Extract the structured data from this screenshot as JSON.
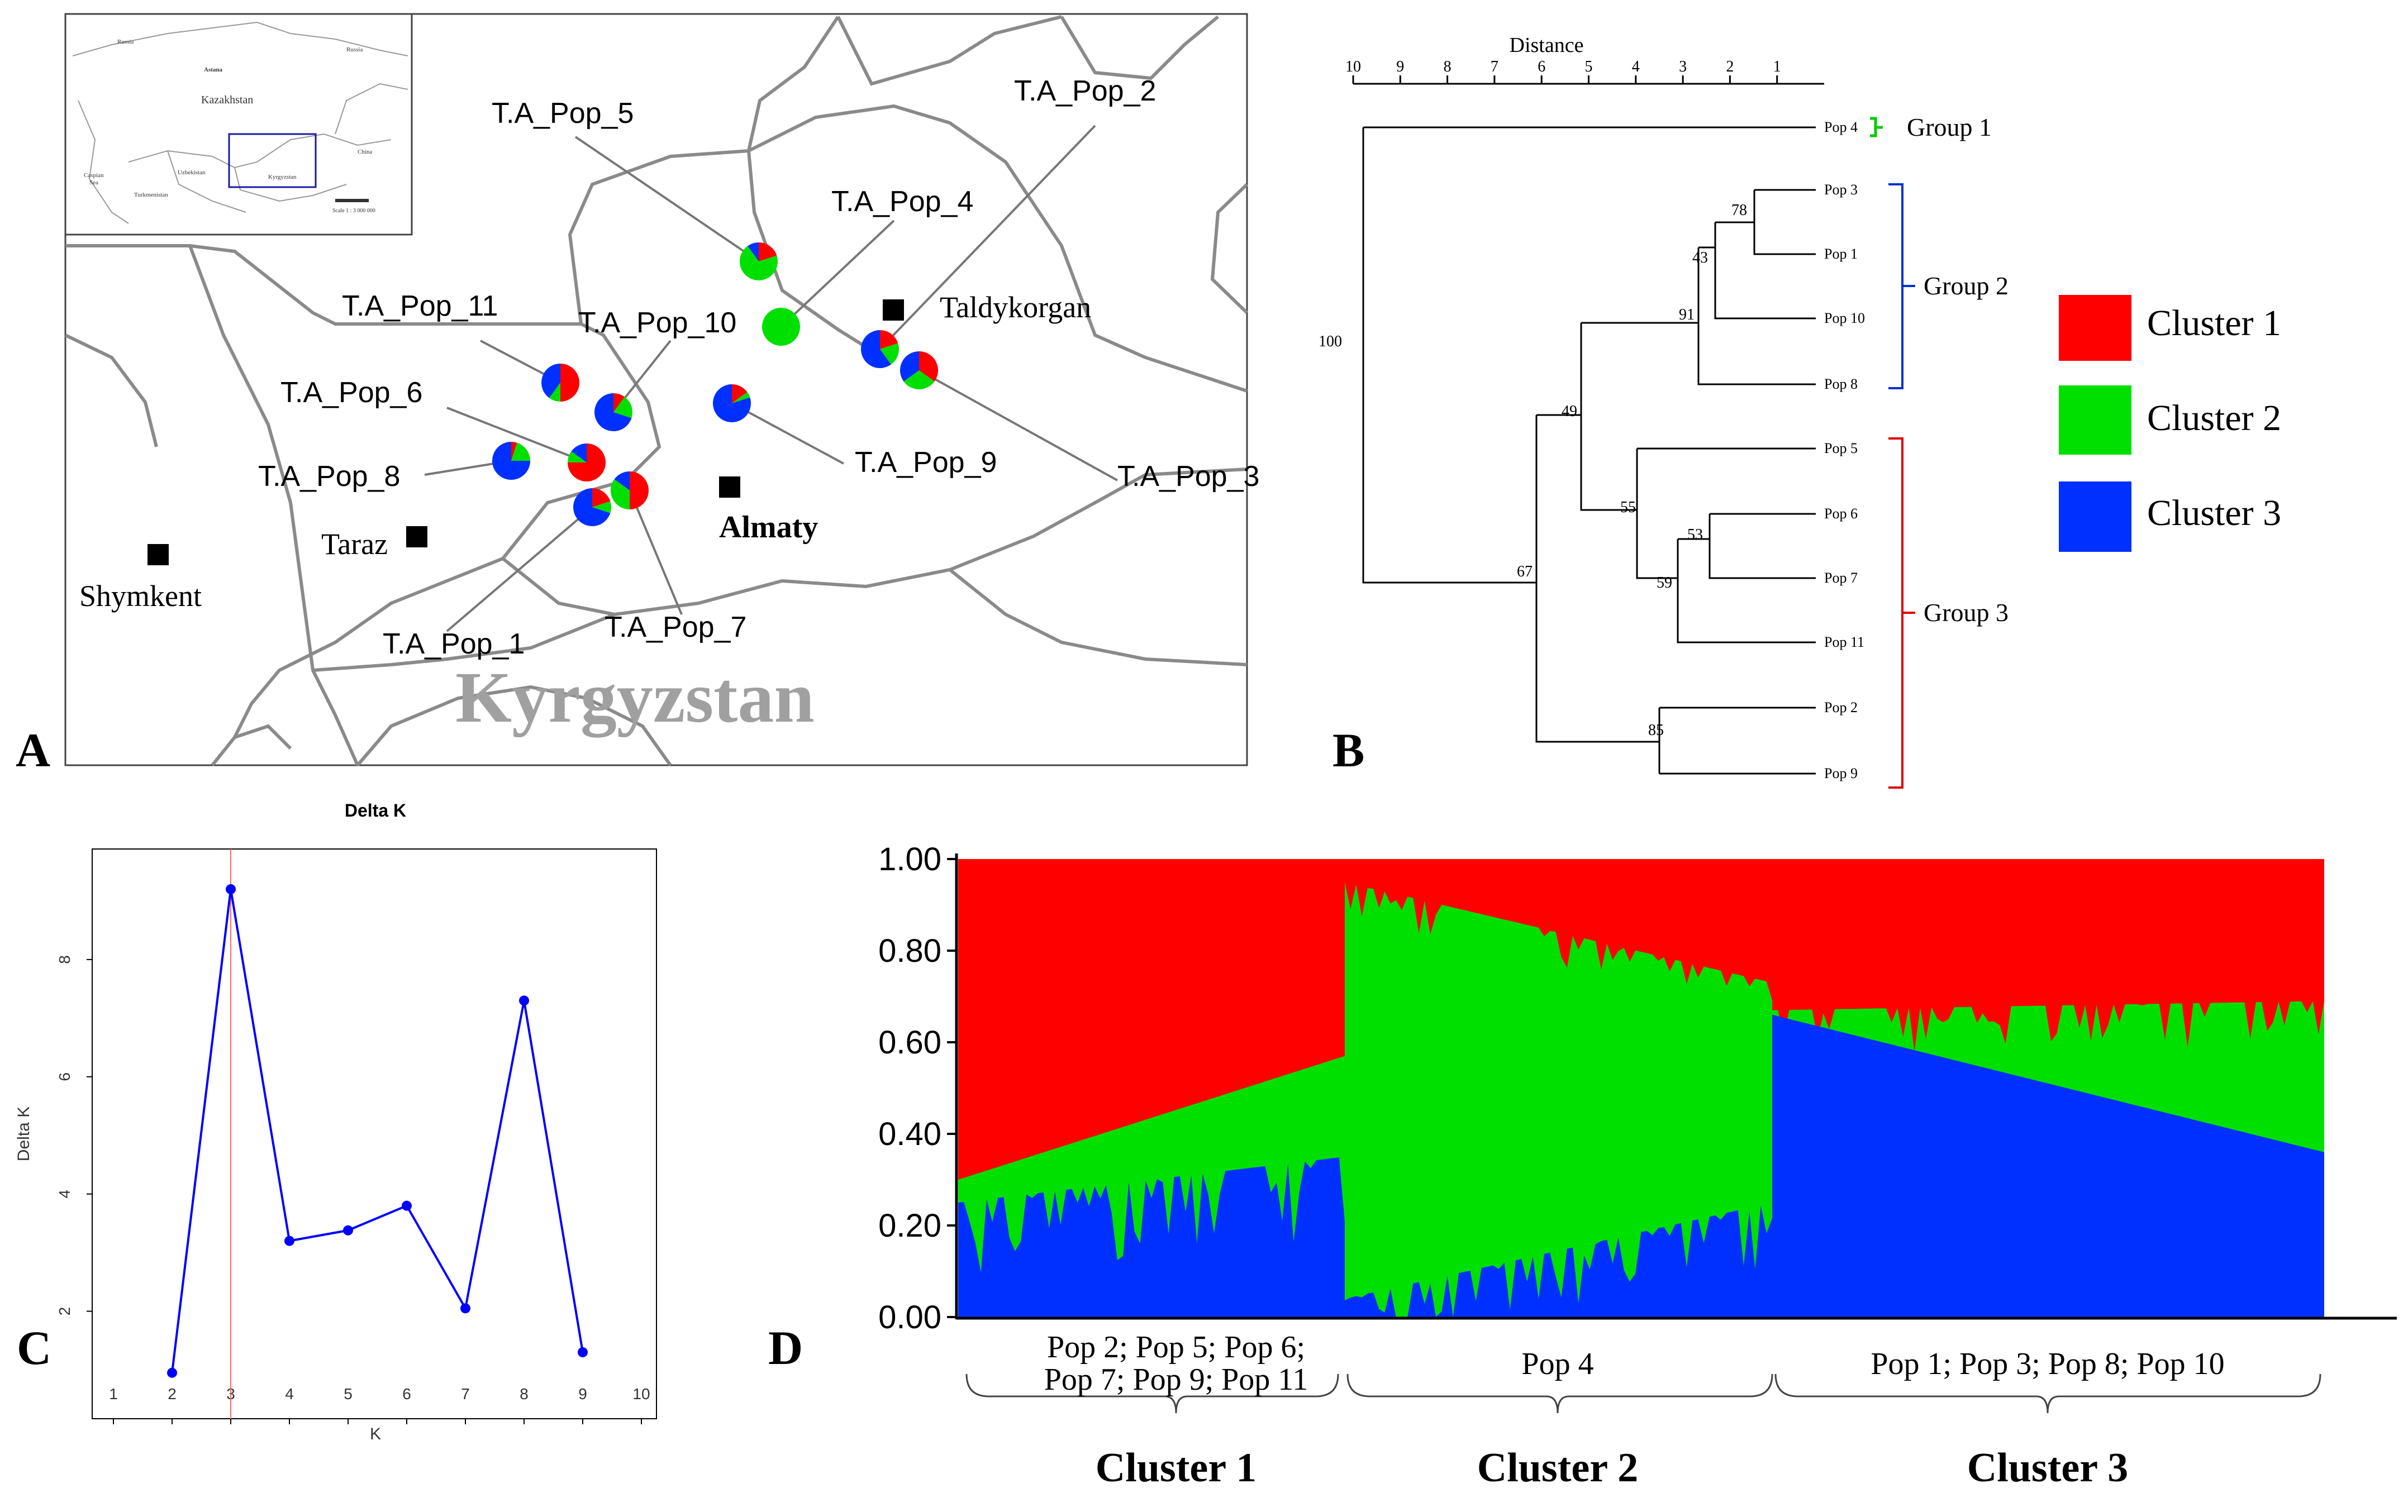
{
  "panel_labels": {
    "a": "A",
    "b": "B",
    "c": "C",
    "d": "D"
  },
  "colors": {
    "cluster1": "#ff0000",
    "cluster2": "#00e000",
    "cluster3": "#0030ff",
    "line": "#0000ff",
    "kline": "#ff6666",
    "group1": "#00cc00",
    "group2": "#0033cc",
    "group3": "#dd0000"
  },
  "map": {
    "country_label": "Kyrgyzstan",
    "inset": {
      "russia1": "Russia",
      "russia2": "Russia",
      "astana": "Astana",
      "kazakhstan": "Kazakhstan",
      "china": "China",
      "caspian": "Caspian",
      "sea": "Sea",
      "uzbekistan": "Uzbekistan",
      "turkmenistan": "Turkmenistan",
      "kyrgyzstan": "Kyrgyzstan",
      "scale": "Scale 1 : 3 000 000"
    },
    "cities": {
      "taldykorgan": "Taldykorgan",
      "almaty": "Almaty",
      "taraz": "Taraz",
      "shymkent": "Shymkent"
    },
    "populations": [
      {
        "label": "T.A_Pop_1",
        "cluster1": 0.2,
        "cluster2": 0.1,
        "cluster3": 0.7
      },
      {
        "label": "T.A_Pop_2",
        "cluster1": 0.2,
        "cluster2": 0.2,
        "cluster3": 0.6
      },
      {
        "label": "T.A_Pop_3",
        "cluster1": 0.35,
        "cluster2": 0.3,
        "cluster3": 0.35
      },
      {
        "label": "T.A_Pop_4",
        "cluster1": 0.0,
        "cluster2": 1.0,
        "cluster3": 0.0
      },
      {
        "label": "T.A_Pop_5",
        "cluster1": 0.2,
        "cluster2": 0.7,
        "cluster3": 0.1
      },
      {
        "label": "T.A_Pop_6",
        "cluster1": 0.75,
        "cluster2": 0.1,
        "cluster3": 0.15
      },
      {
        "label": "T.A_Pop_7",
        "cluster1": 0.5,
        "cluster2": 0.35,
        "cluster3": 0.15
      },
      {
        "label": "T.A_Pop_8",
        "cluster1": 0.05,
        "cluster2": 0.2,
        "cluster3": 0.75
      },
      {
        "label": "T.A_Pop_9",
        "cluster1": 0.15,
        "cluster2": 0.05,
        "cluster3": 0.8
      },
      {
        "label": "T.A_Pop_10",
        "cluster1": 0.1,
        "cluster2": 0.2,
        "cluster3": 0.7
      },
      {
        "label": "T.A_Pop_11",
        "cluster1": 0.5,
        "cluster2": 0.1,
        "cluster3": 0.4
      }
    ]
  },
  "dendrogram": {
    "title": "Distance",
    "axis_ticks": [
      "10",
      "9",
      "8",
      "7",
      "6",
      "5",
      "4",
      "3",
      "2",
      "1"
    ],
    "leaves": [
      "Pop 4",
      "Pop 3",
      "Pop 1",
      "Pop 10",
      "Pop 8",
      "Pop 5",
      "Pop 6",
      "Pop 7",
      "Pop 11",
      "Pop 2",
      "Pop 9"
    ],
    "bootstrap": [
      "100",
      "78",
      "43",
      "91",
      "49",
      "55",
      "53",
      "59",
      "67",
      "85"
    ],
    "groups": [
      "Group 1",
      "Group 2",
      "Group 3"
    ]
  },
  "legend": [
    "Cluster 1",
    "Cluster 2",
    "Cluster 3"
  ],
  "chart_data": [
    {
      "type": "line",
      "title": "Delta K",
      "xlabel": "K",
      "ylabel": "Delta K",
      "x": [
        2,
        3,
        4,
        5,
        6,
        7,
        8,
        9
      ],
      "values": [
        0.95,
        9.2,
        3.2,
        3.38,
        3.8,
        2.05,
        7.3,
        1.3
      ],
      "x_ticks": [
        "1",
        "2",
        "3",
        "4",
        "5",
        "6",
        "7",
        "8",
        "9",
        "10"
      ],
      "y_ticks": [
        "2",
        "4",
        "6",
        "8"
      ],
      "xlim": [
        1,
        10
      ],
      "ylim": [
        0.5,
        9.6
      ],
      "highlight_x": 3
    },
    {
      "type": "area",
      "title": "",
      "y_ticks": [
        "0.00",
        "0.20",
        "0.40",
        "0.60",
        "0.80",
        "1.00"
      ],
      "ylim": [
        0,
        1
      ],
      "series": [
        {
          "name": "Cluster 3",
          "segments": [
            {
              "start": [
                0.25,
                0.17
              ],
              "end": [
                0.35,
                0.28
              ],
              "spikes": 28,
              "depth": 0.18
            },
            {
              "start": [
                0.04,
                0.04
              ],
              "end": [
                0.25,
                0.27
              ],
              "spikes": 26,
              "depth": 0.14
            },
            {
              "start": [
                0.66,
                0.66
              ],
              "end": [
                0.36,
                0.36
              ],
              "spikes": 0,
              "depth": 0
            }
          ]
        },
        {
          "name": "Cluster 2",
          "cumulative_segments": [
            {
              "start": [
                0.3,
                0.3
              ],
              "end": [
                0.57,
                0.57
              ],
              "spikes": 0,
              "depth": 0
            },
            {
              "start": [
                0.95,
                0.95
              ],
              "end": [
                0.73,
                0.73
              ],
              "spikes": 26,
              "depth": 0.08
            },
            {
              "start": [
                0.67,
                0.67
              ],
              "end": [
                0.69,
                0.69
              ],
              "spikes": 36,
              "depth": 0.1
            }
          ]
        },
        {
          "name": "Cluster 1",
          "cumulative": 1.0
        }
      ],
      "groups": [
        {
          "line1": "Pop 2; Pop 5; Pop 6;",
          "line2": "Pop 7; Pop 9; Pop 11",
          "cluster": "Cluster 1"
        },
        {
          "line1": "Pop 4",
          "line2": "",
          "cluster": "Cluster 2"
        },
        {
          "line1": "Pop 1; Pop 3; Pop 8; Pop 10",
          "line2": "",
          "cluster": "Cluster 3"
        }
      ]
    }
  ]
}
